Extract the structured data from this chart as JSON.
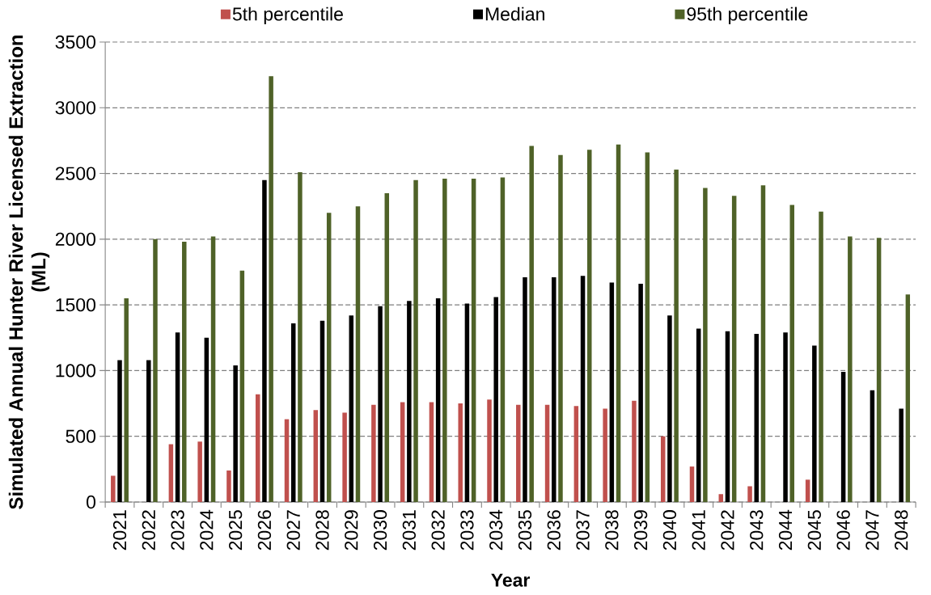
{
  "chart_data": {
    "type": "bar",
    "xlabel": "Year",
    "ylabel": "Simulated Annual Hunter River Licensed Extraction (ML)",
    "categories": [
      "2021",
      "2022",
      "2023",
      "2024",
      "2025",
      "2026",
      "2027",
      "2028",
      "2029",
      "2030",
      "2031",
      "2032",
      "2033",
      "2034",
      "2035",
      "2036",
      "2037",
      "2038",
      "2039",
      "2040",
      "2041",
      "2042",
      "2043",
      "2044",
      "2045",
      "2046",
      "2047",
      "2048"
    ],
    "series": [
      {
        "name": "5th percentile",
        "color": "#c0504d",
        "values": [
          200,
          0,
          440,
          460,
          240,
          820,
          630,
          700,
          680,
          740,
          760,
          760,
          750,
          780,
          740,
          740,
          730,
          710,
          770,
          500,
          270,
          60,
          120,
          0,
          170,
          0,
          0,
          0
        ]
      },
      {
        "name": "Median",
        "color": "#000000",
        "values": [
          1080,
          1080,
          1290,
          1250,
          1040,
          2450,
          1360,
          1380,
          1420,
          1490,
          1530,
          1550,
          1510,
          1560,
          1710,
          1710,
          1720,
          1670,
          1660,
          1420,
          1320,
          1300,
          1280,
          1290,
          1190,
          990,
          850,
          710
        ]
      },
      {
        "name": "95th percentile",
        "color": "#4f6228",
        "values": [
          1550,
          2000,
          1980,
          2020,
          1760,
          3240,
          2510,
          2200,
          2250,
          2350,
          2450,
          2460,
          2460,
          2470,
          2710,
          2640,
          2680,
          2720,
          2660,
          2530,
          2390,
          2330,
          2410,
          2260,
          2210,
          2020,
          2010,
          1580
        ]
      }
    ],
    "ylim": [
      0,
      3500
    ],
    "yticks": [
      0,
      500,
      1000,
      1500,
      2000,
      2500,
      3000,
      3500
    ],
    "grid": "y",
    "legend": "top"
  }
}
